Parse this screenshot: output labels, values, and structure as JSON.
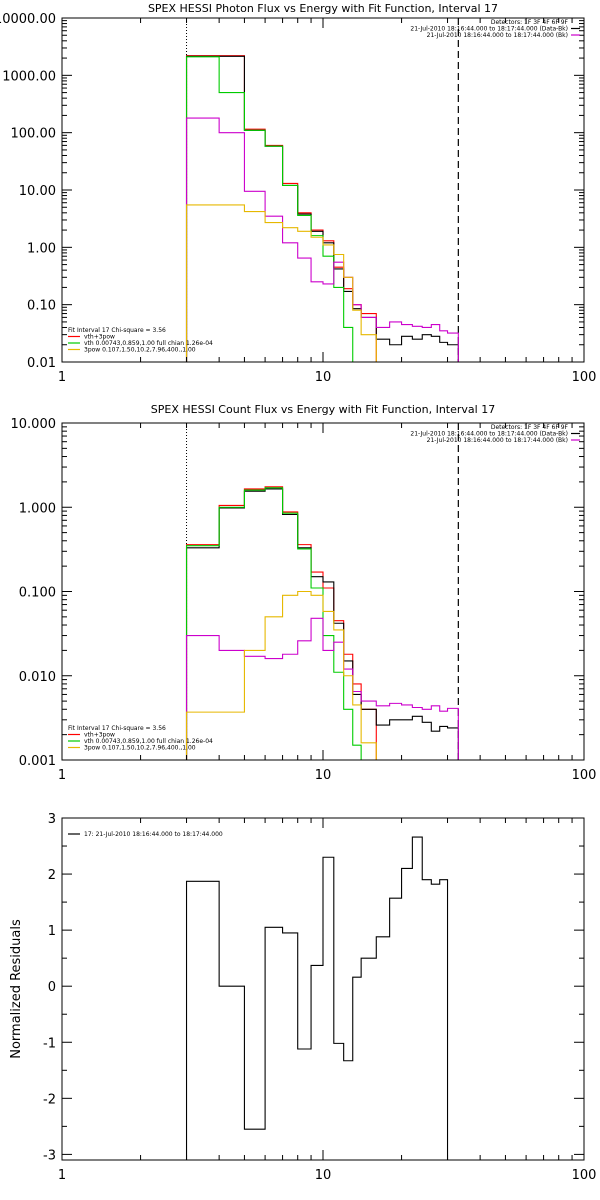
{
  "chart_data": [
    {
      "type": "line",
      "step": true,
      "title": "SPEX HESSI Photon Flux vs Energy with Fit Function, Interval 17",
      "xlabel": "",
      "ylabel": "",
      "xscale": "log",
      "yscale": "log",
      "xlim": [
        1,
        100
      ],
      "ylim": [
        0.01,
        10000
      ],
      "xticks": [
        {
          "v": 1,
          "label": "1"
        },
        {
          "v": 10,
          "label": "10"
        },
        {
          "v": 100,
          "label": "100"
        }
      ],
      "yticks": [
        {
          "v": 0.01,
          "label": "0.01"
        },
        {
          "v": 0.1,
          "label": "0.10"
        },
        {
          "v": 1,
          "label": "1.00"
        },
        {
          "v": 10,
          "label": "10.00"
        },
        {
          "v": 100,
          "label": "100.00"
        },
        {
          "v": 1000,
          "label": "1000.00"
        },
        {
          "v": 10000,
          "label": "10000.00"
        }
      ],
      "vlines": [
        {
          "x": 3,
          "style": "dotted"
        },
        {
          "x": 33,
          "style": "dashed"
        }
      ],
      "header": [
        {
          "text": "Detectors: 1F 3F 4F 6F 9F",
          "color": "#000000"
        },
        {
          "text": "21-Jul-2010 18:16:44.000 to 18:17:44.000 (Data-Bk)",
          "color": "#000000",
          "swatch": "#000000"
        },
        {
          "text": "21-Jul-2010 18:16:44.000 to 18:17:44.000 (Bk)",
          "color": "#000000",
          "swatch": "#cc00cc"
        }
      ],
      "legend": [
        {
          "text": "Fit Interval 17    Chi-square = 3.56",
          "color": "#000000",
          "swatch": null
        },
        {
          "text": "vth+3pow",
          "color": "#000000",
          "swatch": "#ff0000"
        },
        {
          "text": "vth 0.00743,0.859,1.00   full chian 1.26e-04",
          "color": "#000000",
          "swatch": "#00cc00"
        },
        {
          "text": "3pow 0.107,1.50,10.2,7.96,400.,1.00",
          "color": "#000000",
          "swatch": "#e6b800"
        }
      ],
      "edges": [
        3,
        4,
        5,
        6,
        7,
        8,
        9,
        10,
        11,
        12,
        13,
        14,
        16,
        18,
        20,
        22,
        24,
        26,
        28,
        30,
        33
      ],
      "series": [
        {
          "color": "#ff0000",
          "values": [
            2200,
            2200,
            115,
            60,
            13,
            4,
            2,
            1.3,
            0.45,
            0.19,
            0.1,
            0.07
          ]
        },
        {
          "color": "#000000",
          "values": [
            2150,
            2150,
            110,
            58,
            12,
            3.8,
            1.9,
            1.2,
            0.42,
            0.17,
            0.085,
            0.06,
            0.025,
            0.02,
            0.028,
            0.025,
            0.03,
            0.028,
            0.022,
            0.02
          ]
        },
        {
          "color": "#00cc00",
          "values": [
            2100,
            500,
            110,
            58,
            12,
            3.6,
            1.6,
            0.7,
            0.2,
            0.04,
            0.01
          ]
        },
        {
          "color": "#cc00cc",
          "values": [
            180,
            100,
            9.5,
            3.5,
            1.2,
            0.65,
            0.25,
            0.23,
            0.55,
            0.3,
            0.1,
            0.06,
            0.04,
            0.05,
            0.045,
            0.042,
            0.04,
            0.045,
            0.035,
            0.032
          ]
        },
        {
          "color": "#e6b800",
          "values": [
            5.5,
            5.5,
            4.2,
            2.7,
            2.2,
            1.9,
            1.5,
            1.1,
            0.75,
            0.3,
            0.08,
            0.03,
            0.01
          ]
        }
      ]
    },
    {
      "type": "line",
      "step": true,
      "title": "SPEX HESSI Count Flux vs Energy with Fit Function, Interval 17",
      "xlabel": "",
      "ylabel": "",
      "xscale": "log",
      "yscale": "log",
      "xlim": [
        1,
        100
      ],
      "ylim": [
        0.001,
        10
      ],
      "xticks": [
        {
          "v": 1,
          "label": "1"
        },
        {
          "v": 10,
          "label": "10"
        },
        {
          "v": 100,
          "label": "100"
        }
      ],
      "yticks": [
        {
          "v": 0.001,
          "label": "0.001"
        },
        {
          "v": 0.01,
          "label": "0.010"
        },
        {
          "v": 0.1,
          "label": "0.100"
        },
        {
          "v": 1,
          "label": "1.000"
        },
        {
          "v": 10,
          "label": "10.000"
        }
      ],
      "vlines": [
        {
          "x": 3,
          "style": "dotted"
        },
        {
          "x": 33,
          "style": "dashed"
        }
      ],
      "header": [
        {
          "text": "Detectors: 1F 3F 4F 6F 9F",
          "color": "#000000"
        },
        {
          "text": "21-Jul-2010 18:16:44.000 to 18:17:44.000 (Data-Bk)",
          "color": "#000000",
          "swatch": "#000000"
        },
        {
          "text": "21-Jul-2010 18:16:44.000 to 18:17:44.000 (Bk)",
          "color": "#000000",
          "swatch": "#cc00cc"
        }
      ],
      "legend": [
        {
          "text": "Fit Interval 17    Chi-square = 3.56",
          "color": "#000000",
          "swatch": null
        },
        {
          "text": "vth+3pow",
          "color": "#000000",
          "swatch": "#ff0000"
        },
        {
          "text": "vth 0.00743,0.859,1.00   full chian 1.26e-04",
          "color": "#000000",
          "swatch": "#00cc00"
        },
        {
          "text": "3pow 0.107,1.50,10.2,7.96,400.,1.00",
          "color": "#000000",
          "swatch": "#e6b800"
        }
      ],
      "edges": [
        3,
        4,
        5,
        6,
        7,
        8,
        9,
        10,
        11,
        12,
        13,
        14,
        16,
        18,
        20,
        22,
        24,
        26,
        28,
        30,
        33
      ],
      "series": [
        {
          "color": "#ff0000",
          "values": [
            0.36,
            1.05,
            1.65,
            1.75,
            0.88,
            0.36,
            0.17,
            0.11,
            0.045,
            0.018,
            0.008,
            0.004
          ]
        },
        {
          "color": "#000000",
          "values": [
            0.33,
            0.98,
            1.55,
            1.65,
            0.82,
            0.33,
            0.15,
            0.13,
            0.042,
            0.015,
            0.006,
            0.004,
            0.0026,
            0.003,
            0.003,
            0.0033,
            0.0028,
            0.0022,
            0.0025,
            0.0024
          ]
        },
        {
          "color": "#00cc00",
          "values": [
            0.35,
            1.0,
            1.6,
            1.7,
            0.85,
            0.32,
            0.11,
            0.03,
            0.011,
            0.004,
            0.0015,
            0.0005
          ]
        },
        {
          "color": "#cc00cc",
          "values": [
            0.03,
            0.02,
            0.017,
            0.016,
            0.018,
            0.026,
            0.048,
            0.02,
            0.025,
            0.012,
            0.0065,
            0.005,
            0.0044,
            0.0047,
            0.0045,
            0.0042,
            0.004,
            0.0044,
            0.0038,
            0.0041
          ]
        },
        {
          "color": "#e6b800",
          "values": [
            0.0037,
            0.0037,
            0.02,
            0.05,
            0.09,
            0.1,
            0.09,
            0.058,
            0.035,
            0.01,
            0.0045,
            0.0016,
            0.001
          ]
        }
      ]
    },
    {
      "type": "line",
      "step": true,
      "title": "",
      "xlabel": "",
      "ylabel": "Normalized  Residuals",
      "xscale": "log",
      "yscale": "linear",
      "xlim": [
        1,
        100
      ],
      "ylim": [
        -3.1,
        3
      ],
      "xticks": [
        {
          "v": 1,
          "label": "1"
        },
        {
          "v": 10,
          "label": "10"
        },
        {
          "v": 100,
          "label": "100"
        }
      ],
      "yticks": [
        {
          "v": -3,
          "label": "-3"
        },
        {
          "v": -2,
          "label": "-2"
        },
        {
          "v": -1,
          "label": "-1"
        },
        {
          "v": 0,
          "label": "0"
        },
        {
          "v": 1,
          "label": "1"
        },
        {
          "v": 2,
          "label": "2"
        },
        {
          "v": 3,
          "label": "3"
        }
      ],
      "vlines": [],
      "header": [],
      "legend": [
        {
          "text": "17: 21-Jul-2010 18:16:44.000 to 18:17:44.000",
          "color": "#000000",
          "swatch": "#000000"
        }
      ],
      "edges": [
        3,
        4,
        5,
        6,
        7,
        8,
        9,
        10,
        11,
        12,
        13,
        14,
        16,
        18,
        20,
        22,
        24,
        26,
        28,
        30,
        33
      ],
      "series": [
        {
          "color": "#000000",
          "closed": true,
          "values": [
            1.87,
            0.0,
            -2.55,
            1.05,
            0.95,
            -1.12,
            0.37,
            2.3,
            -1.02,
            -1.33,
            0.16,
            0.5,
            0.88,
            1.57,
            2.1,
            2.66,
            1.9,
            1.82,
            1.9
          ]
        }
      ]
    }
  ]
}
